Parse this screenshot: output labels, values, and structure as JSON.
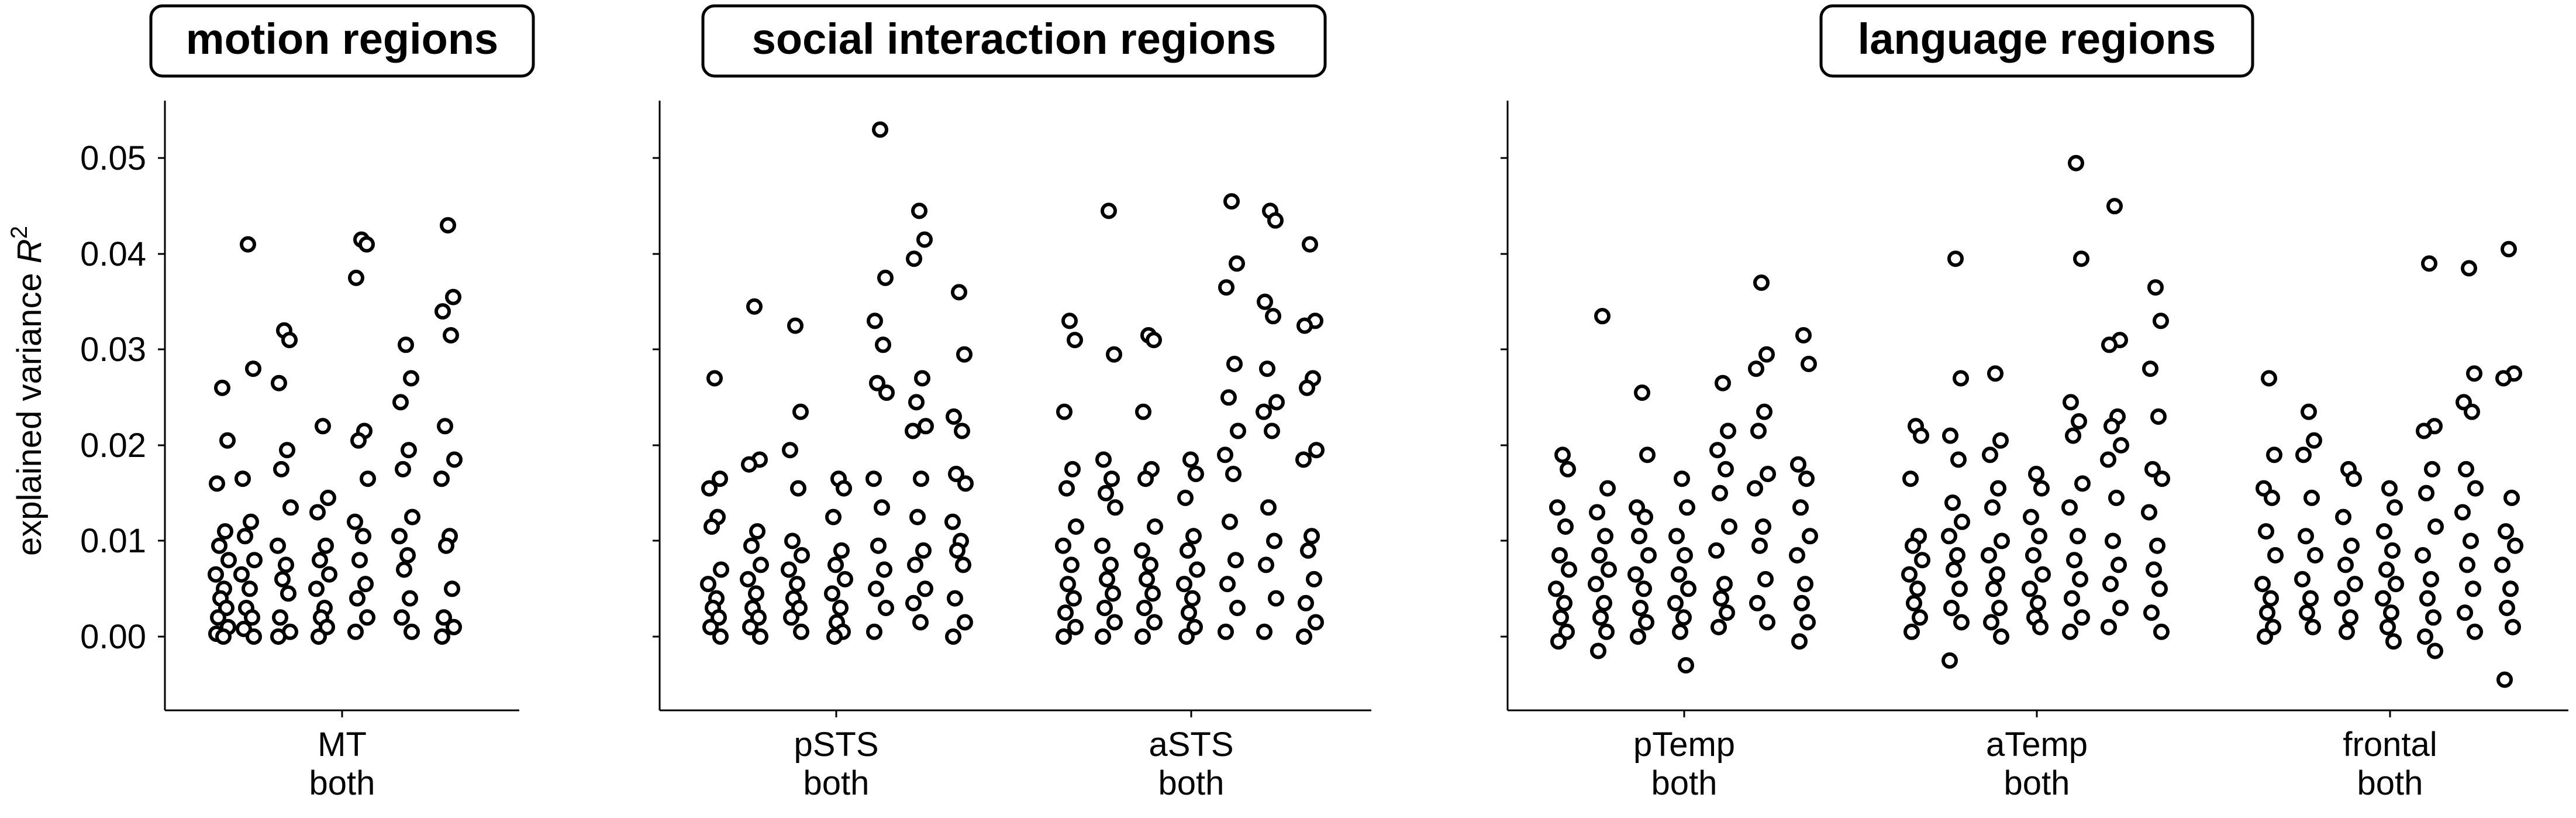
{
  "chart_data": {
    "type": "scatter",
    "ylabel_prefix": "explained variance ",
    "ylabel_symbol": "R",
    "ylabel_exponent": "2",
    "ylim": [
      -0.0075,
      0.0555
    ],
    "yticks": [
      {
        "value": 0.0,
        "label": "0.00"
      },
      {
        "value": 0.01,
        "label": "0.01"
      },
      {
        "value": 0.02,
        "label": "0.02"
      },
      {
        "value": 0.03,
        "label": "0.03"
      },
      {
        "value": 0.04,
        "label": "0.04"
      },
      {
        "value": 0.05,
        "label": "0.05"
      }
    ],
    "marker_colors": [
      "#ffffff",
      "#dce3ef",
      "#b4c3dc",
      "#8ea2c8",
      "#6f86b6",
      "#5a73a8"
    ],
    "panels": [
      {
        "title": "motion regions",
        "groups": [
          {
            "label_line1": "MT",
            "label_line2": "both",
            "subsets": [
              {
                "values": [
                  0.026,
                  0.0205,
                  0.016,
                  0.011,
                  0.0095,
                  0.008,
                  0.0065,
                  0.005,
                  0.004,
                  0.003,
                  0.002,
                  0.001,
                  0.0003,
                  0.0
                ]
              },
              {
                "values": [
                  0.041,
                  0.028,
                  0.0165,
                  0.012,
                  0.0105,
                  0.008,
                  0.0065,
                  0.005,
                  0.003,
                  0.002,
                  0.0008,
                  0.0
                ]
              },
              {
                "values": [
                  0.032,
                  0.031,
                  0.0265,
                  0.0195,
                  0.0175,
                  0.0135,
                  0.0095,
                  0.0075,
                  0.006,
                  0.0045,
                  0.002,
                  0.0005,
                  0.0
                ]
              },
              {
                "values": [
                  0.022,
                  0.0145,
                  0.013,
                  0.0095,
                  0.008,
                  0.0065,
                  0.005,
                  0.003,
                  0.002,
                  0.001,
                  0.0
                ]
              },
              {
                "values": [
                  0.0415,
                  0.041,
                  0.0375,
                  0.0215,
                  0.0205,
                  0.0165,
                  0.012,
                  0.0105,
                  0.008,
                  0.0055,
                  0.004,
                  0.002,
                  0.0005
                ]
              },
              {
                "values": [
                  0.0305,
                  0.027,
                  0.0245,
                  0.0195,
                  0.0175,
                  0.0125,
                  0.0105,
                  0.0085,
                  0.007,
                  0.004,
                  0.002,
                  0.0005
                ]
              },
              {
                "values": [
                  0.043,
                  0.0355,
                  0.034,
                  0.0315,
                  0.022,
                  0.0185,
                  0.0165,
                  0.0105,
                  0.0095,
                  0.005,
                  0.002,
                  0.001,
                  0.0
                ]
              }
            ]
          }
        ]
      },
      {
        "title": "social interaction regions",
        "groups": [
          {
            "label_line1": "pSTS",
            "label_line2": "both",
            "subsets": [
              {
                "values": [
                  0.027,
                  0.0165,
                  0.0155,
                  0.0125,
                  0.0115,
                  0.007,
                  0.0055,
                  0.004,
                  0.003,
                  0.002,
                  0.001,
                  0.0
                ]
              },
              {
                "values": [
                  0.0345,
                  0.0185,
                  0.018,
                  0.011,
                  0.0095,
                  0.0075,
                  0.006,
                  0.0045,
                  0.003,
                  0.002,
                  0.001,
                  0.0
                ]
              },
              {
                "values": [
                  0.0325,
                  0.0235,
                  0.0195,
                  0.0155,
                  0.01,
                  0.0085,
                  0.007,
                  0.0055,
                  0.004,
                  0.003,
                  0.002,
                  0.0005
                ]
              },
              {
                "values": [
                  0.0165,
                  0.0155,
                  0.0125,
                  0.009,
                  0.0075,
                  0.006,
                  0.0045,
                  0.003,
                  0.0015,
                  0.0005,
                  0.0
                ]
              },
              {
                "values": [
                  0.053,
                  0.0375,
                  0.033,
                  0.0305,
                  0.0265,
                  0.0255,
                  0.0165,
                  0.0135,
                  0.0095,
                  0.007,
                  0.005,
                  0.003,
                  0.0005
                ]
              },
              {
                "values": [
                  0.0445,
                  0.0415,
                  0.0395,
                  0.027,
                  0.0245,
                  0.022,
                  0.0215,
                  0.0165,
                  0.0125,
                  0.009,
                  0.0075,
                  0.005,
                  0.0035,
                  0.0015
                ]
              },
              {
                "values": [
                  0.036,
                  0.0295,
                  0.023,
                  0.0215,
                  0.017,
                  0.016,
                  0.012,
                  0.01,
                  0.009,
                  0.0075,
                  0.004,
                  0.0015,
                  0.0
                ]
              }
            ]
          },
          {
            "label_line1": "aSTS",
            "label_line2": "both",
            "subsets": [
              {
                "values": [
                  0.033,
                  0.031,
                  0.0235,
                  0.0175,
                  0.0155,
                  0.0115,
                  0.0095,
                  0.0075,
                  0.0055,
                  0.004,
                  0.0025,
                  0.001,
                  0.0
                ]
              },
              {
                "values": [
                  0.0445,
                  0.0295,
                  0.0185,
                  0.0165,
                  0.015,
                  0.0135,
                  0.0095,
                  0.0075,
                  0.006,
                  0.0045,
                  0.003,
                  0.0015,
                  0.0
                ]
              },
              {
                "values": [
                  0.0315,
                  0.031,
                  0.0235,
                  0.0175,
                  0.0165,
                  0.0115,
                  0.009,
                  0.0075,
                  0.006,
                  0.0045,
                  0.003,
                  0.0015,
                  0.0
                ]
              },
              {
                "values": [
                  0.0185,
                  0.017,
                  0.0145,
                  0.0105,
                  0.009,
                  0.007,
                  0.0055,
                  0.004,
                  0.0025,
                  0.001,
                  0.0
                ]
              },
              {
                "values": [
                  0.0455,
                  0.039,
                  0.0365,
                  0.0285,
                  0.025,
                  0.0215,
                  0.019,
                  0.017,
                  0.012,
                  0.008,
                  0.0055,
                  0.003,
                  0.0005
                ]
              },
              {
                "values": [
                  0.0445,
                  0.0435,
                  0.035,
                  0.0335,
                  0.028,
                  0.0245,
                  0.0235,
                  0.0215,
                  0.0135,
                  0.01,
                  0.0075,
                  0.004,
                  0.0005
                ]
              },
              {
                "values": [
                  0.041,
                  0.033,
                  0.0325,
                  0.027,
                  0.026,
                  0.0195,
                  0.0185,
                  0.0105,
                  0.009,
                  0.006,
                  0.0035,
                  0.0015,
                  0.0
                ]
              }
            ]
          }
        ]
      },
      {
        "title": "language regions",
        "groups": [
          {
            "label_line1": "pTemp",
            "label_line2": "both",
            "subsets": [
              {
                "values": [
                  0.019,
                  0.0175,
                  0.0135,
                  0.0115,
                  0.0085,
                  0.007,
                  0.005,
                  0.0035,
                  0.002,
                  0.0005,
                  -0.0005
                ]
              },
              {
                "values": [
                  0.0335,
                  0.0155,
                  0.013,
                  0.0105,
                  0.0085,
                  0.007,
                  0.0055,
                  0.0035,
                  0.002,
                  0.0005,
                  -0.0015
                ]
              },
              {
                "values": [
                  0.0255,
                  0.019,
                  0.0135,
                  0.0125,
                  0.0105,
                  0.0085,
                  0.0065,
                  0.005,
                  0.003,
                  0.0015,
                  0.0
                ]
              },
              {
                "values": [
                  0.0165,
                  0.0135,
                  0.0105,
                  0.0085,
                  0.0065,
                  0.005,
                  0.0035,
                  0.002,
                  0.0005,
                  -0.003
                ]
              },
              {
                "values": [
                  0.0265,
                  0.0215,
                  0.0195,
                  0.0175,
                  0.015,
                  0.0115,
                  0.009,
                  0.0055,
                  0.004,
                  0.0025,
                  0.001
                ]
              },
              {
                "values": [
                  0.037,
                  0.0295,
                  0.028,
                  0.0235,
                  0.0215,
                  0.017,
                  0.0155,
                  0.0115,
                  0.0095,
                  0.006,
                  0.0035,
                  0.0015
                ]
              },
              {
                "values": [
                  0.0315,
                  0.0285,
                  0.018,
                  0.0165,
                  0.0135,
                  0.0105,
                  0.0085,
                  0.0055,
                  0.0035,
                  0.0015,
                  -0.0005
                ]
              }
            ]
          },
          {
            "label_line1": "aTemp",
            "label_line2": "both",
            "subsets": [
              {
                "values": [
                  0.022,
                  0.021,
                  0.0165,
                  0.0105,
                  0.0095,
                  0.008,
                  0.0065,
                  0.005,
                  0.0035,
                  0.002,
                  0.0005
                ]
              },
              {
                "values": [
                  0.0395,
                  0.027,
                  0.021,
                  0.0185,
                  0.014,
                  0.012,
                  0.0105,
                  0.0085,
                  0.007,
                  0.005,
                  0.003,
                  0.0015,
                  -0.0025
                ]
              },
              {
                "values": [
                  0.0275,
                  0.0205,
                  0.019,
                  0.0155,
                  0.0135,
                  0.01,
                  0.0085,
                  0.0065,
                  0.005,
                  0.003,
                  0.0015,
                  0.0
                ]
              },
              {
                "values": [
                  0.017,
                  0.0155,
                  0.0125,
                  0.0105,
                  0.0085,
                  0.0065,
                  0.005,
                  0.0035,
                  0.002,
                  0.001
                ]
              },
              {
                "values": [
                  0.0495,
                  0.0395,
                  0.0245,
                  0.0225,
                  0.021,
                  0.016,
                  0.0135,
                  0.0105,
                  0.008,
                  0.006,
                  0.004,
                  0.002,
                  0.0005
                ]
              },
              {
                "values": [
                  0.045,
                  0.031,
                  0.0305,
                  0.023,
                  0.022,
                  0.02,
                  0.0185,
                  0.0145,
                  0.01,
                  0.0075,
                  0.0055,
                  0.003,
                  0.001
                ]
              },
              {
                "values": [
                  0.0365,
                  0.033,
                  0.028,
                  0.023,
                  0.0175,
                  0.0165,
                  0.013,
                  0.0095,
                  0.007,
                  0.005,
                  0.0025,
                  0.0005
                ]
              }
            ]
          },
          {
            "label_line1": "frontal",
            "label_line2": "both",
            "subsets": [
              {
                "values": [
                  0.027,
                  0.019,
                  0.0155,
                  0.0145,
                  0.011,
                  0.0085,
                  0.0055,
                  0.004,
                  0.0025,
                  0.001,
                  0.0
                ]
              },
              {
                "values": [
                  0.0235,
                  0.0205,
                  0.019,
                  0.0145,
                  0.0105,
                  0.0085,
                  0.006,
                  0.004,
                  0.0025,
                  0.001
                ]
              },
              {
                "values": [
                  0.0175,
                  0.0165,
                  0.0125,
                  0.0095,
                  0.0075,
                  0.0055,
                  0.004,
                  0.002,
                  0.0005
                ]
              },
              {
                "values": [
                  0.0155,
                  0.0135,
                  0.011,
                  0.009,
                  0.007,
                  0.0055,
                  0.004,
                  0.0025,
                  0.001,
                  -0.0005
                ]
              },
              {
                "values": [
                  0.039,
                  0.022,
                  0.0215,
                  0.0175,
                  0.015,
                  0.0115,
                  0.0085,
                  0.006,
                  0.004,
                  0.002,
                  0.0,
                  -0.0015
                ]
              },
              {
                "values": [
                  0.0385,
                  0.0275,
                  0.0245,
                  0.0235,
                  0.0175,
                  0.0155,
                  0.013,
                  0.01,
                  0.0075,
                  0.005,
                  0.0025,
                  0.0005
                ]
              },
              {
                "values": [
                  0.0405,
                  0.0275,
                  0.027,
                  0.0145,
                  0.011,
                  0.0095,
                  0.0075,
                  0.005,
                  0.003,
                  0.001,
                  -0.0045
                ]
              }
            ]
          }
        ]
      }
    ]
  }
}
